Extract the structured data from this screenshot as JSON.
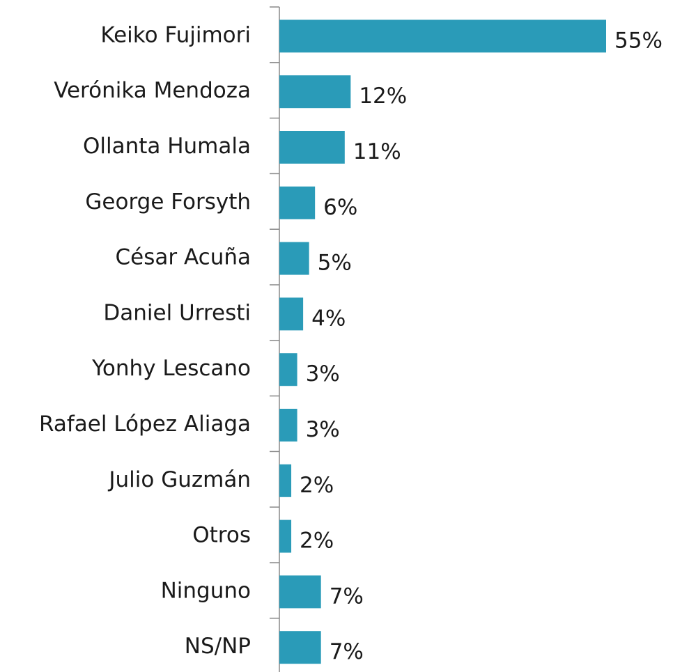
{
  "chart_data": {
    "type": "bar",
    "orientation": "horizontal",
    "categories": [
      "Keiko Fujimori",
      "Verónika Mendoza",
      "Ollanta Humala",
      "George Forsyth",
      "César Acuña",
      "Daniel Urresti",
      "Yonhy Lescano",
      "Rafael López Aliaga",
      "Julio Guzmán",
      "Otros",
      "Ninguno",
      "NS/NP"
    ],
    "values": [
      55,
      12,
      11,
      6,
      5,
      4,
      3,
      3,
      2,
      2,
      7,
      7
    ],
    "value_labels": [
      "55%",
      "12%",
      "11%",
      "6%",
      "5%",
      "4%",
      "3%",
      "3%",
      "2%",
      "2%",
      "7%",
      "7%"
    ],
    "color": "#2a9bb8",
    "grid": false
  }
}
